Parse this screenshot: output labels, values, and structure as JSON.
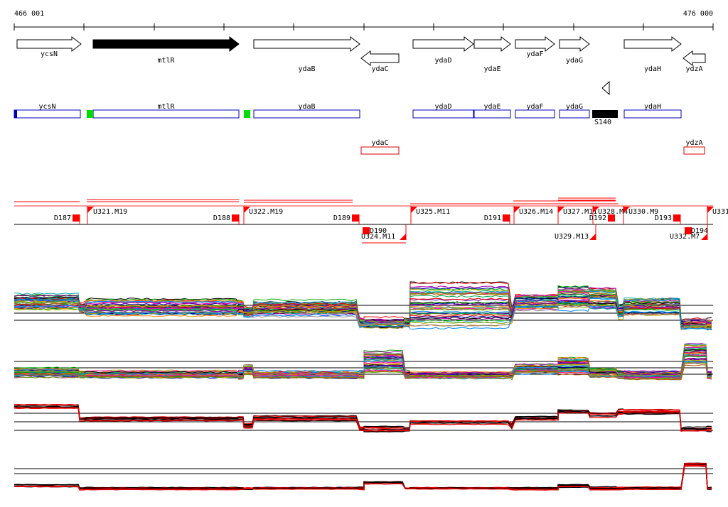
{
  "ruler": {
    "start_label": "466 001",
    "end_label": "476 000"
  },
  "genes": [
    {
      "label": "ycsN",
      "dir": "+",
      "filled": false
    },
    {
      "label": "mtlR",
      "dir": "+",
      "filled": true
    },
    {
      "label": "ydaB",
      "dir": "+",
      "filled": false
    },
    {
      "label": "ydaC",
      "dir": "-",
      "filled": false
    },
    {
      "label": "ydaD",
      "dir": "+",
      "filled": false
    },
    {
      "label": "ydaE",
      "dir": "+",
      "filled": false
    },
    {
      "label": "ydaF",
      "dir": "+",
      "filled": false
    },
    {
      "label": "ydaG",
      "dir": "+",
      "filled": false
    },
    {
      "label": "ydaH",
      "dir": "+",
      "filled": false
    },
    {
      "label": "ydzA",
      "dir": "-",
      "filled": false
    }
  ],
  "blue_boxes": [
    "ycsN",
    "mtlR",
    "ydaB",
    "ydaD",
    "ydaE",
    "ydaF",
    "ydaG",
    "ydaH"
  ],
  "red_boxes": [
    "ydaC",
    "ydzA"
  ],
  "feature_s140": "S140",
  "segments_top": [
    "D187",
    "U321.M19",
    "D188",
    "U322.M19",
    "D189",
    "U325.M11",
    "D191",
    "U326.M14",
    "U327.M11",
    "U328.M4",
    "U330.M9",
    "D193",
    "U331"
  ],
  "segments_bottom": [
    "D190",
    "U324.M11",
    "D192",
    "U329.M13",
    "D194",
    "U332.M7"
  ],
  "colors": {
    "gene_fill": "#000000",
    "gene_outline": "#000000",
    "box_blue": "#0000bb",
    "box_red": "#dd0000",
    "box_green": "#00dd00",
    "segment_red": "#ff0000",
    "trace_black": "#000000",
    "trace_red": "#ee0000"
  }
}
